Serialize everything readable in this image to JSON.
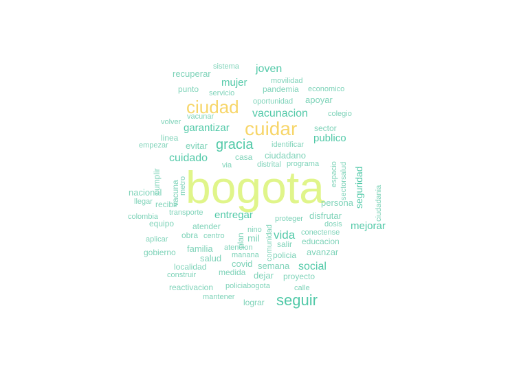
{
  "palette": {
    "big": "#e0f58a",
    "gold": "#f7d66a",
    "teal": "#52c9a8",
    "teal_light": "#7fd3b9",
    "green_teal": "#46c4a2"
  },
  "words": [
    {
      "text": "bogota",
      "color": "#e0f58a",
      "rank": 1
    },
    {
      "text": "cuidar",
      "color": "#f7d66a",
      "rank": 2
    },
    {
      "text": "ciudad",
      "color": "#f7d66a",
      "rank": 2
    },
    {
      "text": "seguir",
      "color": "#52c9a8",
      "rank": 3
    },
    {
      "text": "gracia",
      "color": "#52c9a8",
      "rank": 3
    },
    {
      "text": "vacunacion",
      "color": "#52c9a8",
      "rank": 4
    },
    {
      "text": "cuidado",
      "color": "#52c9a8",
      "rank": 4
    },
    {
      "text": "entregar",
      "color": "#52c9a8",
      "rank": 4
    },
    {
      "text": "mujer",
      "color": "#52c9a8",
      "rank": 4
    },
    {
      "text": "joven",
      "color": "#52c9a8",
      "rank": 4
    },
    {
      "text": "garantizar",
      "color": "#52c9a8",
      "rank": 4
    },
    {
      "text": "publico",
      "color": "#52c9a8",
      "rank": 4
    },
    {
      "text": "social",
      "color": "#52c9a8",
      "rank": 4
    },
    {
      "text": "mejorar",
      "color": "#52c9a8",
      "rank": 4
    },
    {
      "text": "vida",
      "color": "#52c9a8",
      "rank": 4
    },
    {
      "text": "seguridad",
      "color": "#52c9a8",
      "rank": 4
    },
    {
      "text": "persona",
      "color": "#7fd3b9",
      "rank": 5
    },
    {
      "text": "nacional",
      "color": "#7fd3b9",
      "rank": 5
    },
    {
      "text": "evitar",
      "color": "#7fd3b9",
      "rank": 5
    },
    {
      "text": "ciudadano",
      "color": "#7fd3b9",
      "rank": 5
    },
    {
      "text": "recuperar",
      "color": "#7fd3b9",
      "rank": 5
    },
    {
      "text": "disfrutar",
      "color": "#7fd3b9",
      "rank": 5
    },
    {
      "text": "familia",
      "color": "#7fd3b9",
      "rank": 5
    },
    {
      "text": "salud",
      "color": "#7fd3b9",
      "rank": 5
    },
    {
      "text": "mil",
      "color": "#7fd3b9",
      "rank": 5
    },
    {
      "text": "covid",
      "color": "#7fd3b9",
      "rank": 5
    },
    {
      "text": "dejar",
      "color": "#7fd3b9",
      "rank": 5
    },
    {
      "text": "avanzar",
      "color": "#7fd3b9",
      "rank": 5
    },
    {
      "text": "gobierno",
      "color": "#7fd3b9",
      "rank": 5
    },
    {
      "text": "atender",
      "color": "#7fd3b9",
      "rank": 5
    },
    {
      "text": "localidad",
      "color": "#7fd3b9",
      "rank": 5
    },
    {
      "text": "semana",
      "color": "#7fd3b9",
      "rank": 5
    },
    {
      "text": "lograr",
      "color": "#7fd3b9",
      "rank": 5
    },
    {
      "text": "reactivacion",
      "color": "#7fd3b9",
      "rank": 5
    },
    {
      "text": "apoyar",
      "color": "#7fd3b9",
      "rank": 5
    },
    {
      "text": "pandemia",
      "color": "#7fd3b9",
      "rank": 5
    },
    {
      "text": "punto",
      "color": "#7fd3b9",
      "rank": 5
    },
    {
      "text": "sector",
      "color": "#7fd3b9",
      "rank": 5
    },
    {
      "text": "casa",
      "color": "#7fd3b9",
      "rank": 5
    },
    {
      "text": "equipo",
      "color": "#7fd3b9",
      "rank": 5
    },
    {
      "text": "educacion",
      "color": "#7fd3b9",
      "rank": 5
    },
    {
      "text": "policia",
      "color": "#7fd3b9",
      "rank": 5
    },
    {
      "text": "proyecto",
      "color": "#7fd3b9",
      "rank": 5
    },
    {
      "text": "medida",
      "color": "#7fd3b9",
      "rank": 5
    },
    {
      "text": "salir",
      "color": "#7fd3b9",
      "rank": 5
    },
    {
      "text": "linea",
      "color": "#7fd3b9",
      "rank": 5
    },
    {
      "text": "recibir",
      "color": "#7fd3b9",
      "rank": 5
    },
    {
      "text": "obra",
      "color": "#7fd3b9",
      "rank": 5
    },
    {
      "text": "cumplir",
      "color": "#7fd3b9",
      "rank": 5
    },
    {
      "text": "vacuna",
      "color": "#7fd3b9",
      "rank": 5
    },
    {
      "text": "plan",
      "color": "#7fd3b9",
      "rank": 5
    },
    {
      "text": "comunidad",
      "color": "#7fd3b9",
      "rank": 6
    },
    {
      "text": "sistema",
      "color": "#7fd3b9",
      "rank": 6
    },
    {
      "text": "movilidad",
      "color": "#7fd3b9",
      "rank": 6
    },
    {
      "text": "economico",
      "color": "#7fd3b9",
      "rank": 6
    },
    {
      "text": "servicio",
      "color": "#7fd3b9",
      "rank": 6
    },
    {
      "text": "oportunidad",
      "color": "#7fd3b9",
      "rank": 6
    },
    {
      "text": "colegio",
      "color": "#7fd3b9",
      "rank": 6
    },
    {
      "text": "vacunar",
      "color": "#7fd3b9",
      "rank": 6
    },
    {
      "text": "volver",
      "color": "#7fd3b9",
      "rank": 6
    },
    {
      "text": "empezar",
      "color": "#7fd3b9",
      "rank": 6
    },
    {
      "text": "identificar",
      "color": "#7fd3b9",
      "rank": 6
    },
    {
      "text": "distrital",
      "color": "#7fd3b9",
      "rank": 6
    },
    {
      "text": "programa",
      "color": "#7fd3b9",
      "rank": 6
    },
    {
      "text": "via",
      "color": "#7fd3b9",
      "rank": 6
    },
    {
      "text": "metro",
      "color": "#7fd3b9",
      "rank": 6
    },
    {
      "text": "espacio",
      "color": "#7fd3b9",
      "rank": 6
    },
    {
      "text": "sectorsalud",
      "color": "#7fd3b9",
      "rank": 6
    },
    {
      "text": "ciudadania",
      "color": "#7fd3b9",
      "rank": 6
    },
    {
      "text": "llegar",
      "color": "#7fd3b9",
      "rank": 6
    },
    {
      "text": "colombia",
      "color": "#7fd3b9",
      "rank": 6
    },
    {
      "text": "transporte",
      "color": "#7fd3b9",
      "rank": 6
    },
    {
      "text": "proteger",
      "color": "#7fd3b9",
      "rank": 6
    },
    {
      "text": "dosis",
      "color": "#7fd3b9",
      "rank": 6
    },
    {
      "text": "nino",
      "color": "#7fd3b9",
      "rank": 6
    },
    {
      "text": "conectense",
      "color": "#7fd3b9",
      "rank": 6
    },
    {
      "text": "aplicar",
      "color": "#7fd3b9",
      "rank": 6
    },
    {
      "text": "centro",
      "color": "#7fd3b9",
      "rank": 6
    },
    {
      "text": "atencion",
      "color": "#7fd3b9",
      "rank": 6
    },
    {
      "text": "manana",
      "color": "#7fd3b9",
      "rank": 6
    },
    {
      "text": "construir",
      "color": "#7fd3b9",
      "rank": 6
    },
    {
      "text": "policiabogota",
      "color": "#7fd3b9",
      "rank": 6
    },
    {
      "text": "calle",
      "color": "#7fd3b9",
      "rank": 6
    },
    {
      "text": "mantener",
      "color": "#7fd3b9",
      "rank": 6
    }
  ]
}
